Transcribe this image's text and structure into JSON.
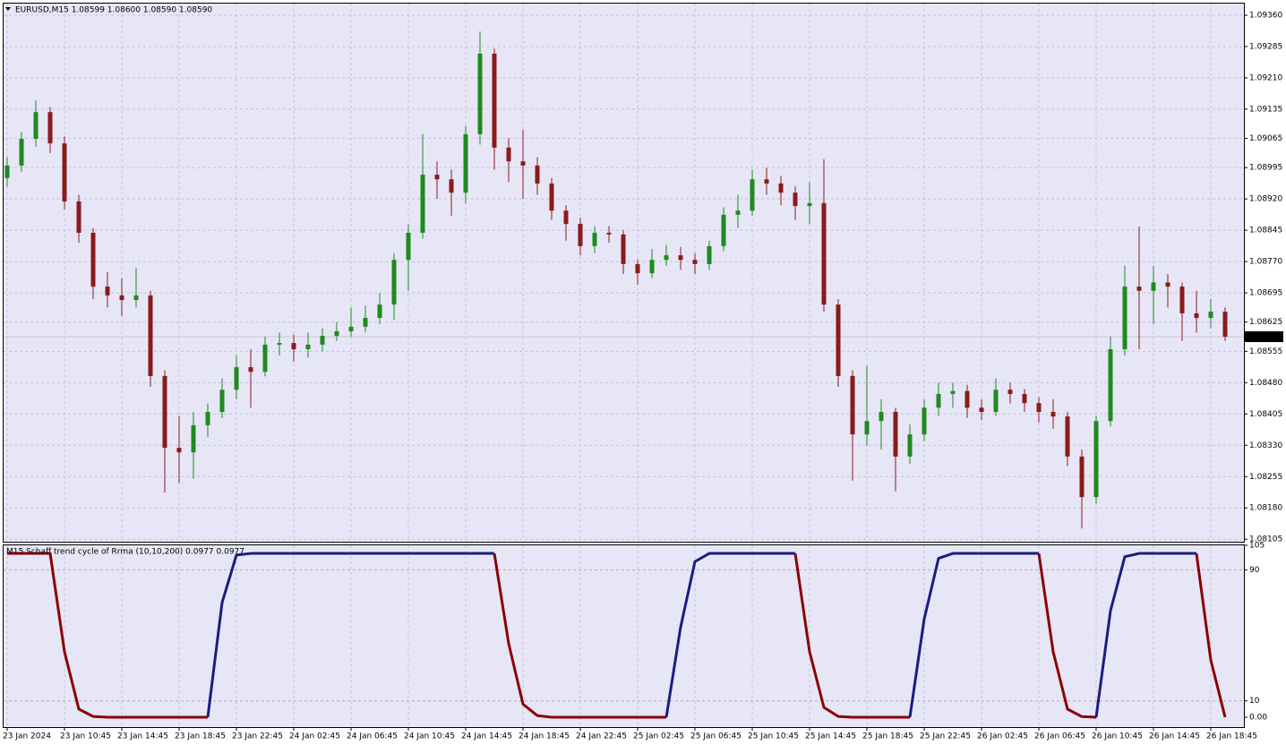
{
  "chart_data": [
    {
      "type": "candlestick",
      "title": "EURUSD,M15  1.08599 1.08600 1.08590 1.08590",
      "up_color": "#1f8a1f",
      "down_color": "#8b1a1a",
      "grid": true,
      "categories": [
        "23 Jan 2024",
        null,
        null,
        null,
        "23 Jan 10:45",
        null,
        null,
        null,
        "23 Jan 14:45",
        null,
        null,
        null,
        "23 Jan 18:45",
        null,
        null,
        null,
        "23 Jan 22:45",
        null,
        null,
        null,
        "24 Jan 02:45",
        null,
        null,
        null,
        "24 Jan 06:45",
        null,
        null,
        null,
        "24 Jan 10:45",
        null,
        null,
        null,
        "24 Jan 14:45",
        null,
        null,
        null,
        "24 Jan 18:45",
        null,
        null,
        null,
        "24 Jan 22:45",
        null,
        null,
        null,
        "25 Jan 02:45",
        null,
        null,
        null,
        "25 Jan 06:45",
        null,
        null,
        null,
        "25 Jan 10:45",
        null,
        null,
        null,
        "25 Jan 14:45",
        null,
        null,
        null,
        "25 Jan 18:45",
        null,
        null,
        null,
        "25 Jan 22:45",
        null,
        null,
        null,
        "26 Jan 02:45",
        null,
        null,
        null,
        "26 Jan 06:45",
        null,
        null,
        null,
        "26 Jan 10:45",
        null,
        null,
        null,
        "26 Jan 14:45",
        null,
        null,
        null,
        "26 Jan 18:45",
        null
      ],
      "ohlc": [
        [
          1.0897,
          1.0902,
          1.0895,
          1.09
        ],
        [
          1.09,
          1.0908,
          1.08985,
          1.09064
        ],
        [
          1.09064,
          1.09156,
          1.09045,
          1.09128
        ],
        [
          1.09128,
          1.0914,
          1.0903,
          1.09053
        ],
        [
          1.09053,
          1.0907,
          1.08895,
          1.08914
        ],
        [
          1.08914,
          1.0893,
          1.08815,
          1.08839
        ],
        [
          1.08839,
          1.0885,
          1.0868,
          1.0871
        ],
        [
          1.0871,
          1.08745,
          1.0866,
          1.08689
        ],
        [
          1.08689,
          1.0873,
          1.0864,
          1.08678
        ],
        [
          1.08678,
          1.08755,
          1.0866,
          1.08689
        ],
        [
          1.08689,
          1.087,
          1.0847,
          1.08496
        ],
        [
          1.08496,
          1.0851,
          1.08217,
          1.08324
        ],
        [
          1.08324,
          1.084,
          1.0824,
          1.08313
        ],
        [
          1.08313,
          1.0841,
          1.0825,
          1.08378
        ],
        [
          1.08378,
          1.0843,
          1.0835,
          1.0841
        ],
        [
          1.0841,
          1.0849,
          1.08395,
          1.08463
        ],
        [
          1.08463,
          1.08545,
          1.0844,
          1.08517
        ],
        [
          1.08517,
          1.0856,
          1.0842,
          1.08506
        ],
        [
          1.08506,
          1.0859,
          1.08495,
          1.08571
        ],
        [
          1.08571,
          1.086,
          1.08545,
          1.08575
        ],
        [
          1.08575,
          1.08595,
          1.0853,
          1.0856
        ],
        [
          1.0856,
          1.086,
          1.0854,
          1.08571
        ],
        [
          1.08571,
          1.0861,
          1.08555,
          1.08592
        ],
        [
          1.08592,
          1.08625,
          1.0858,
          1.08603
        ],
        [
          1.08603,
          1.0866,
          1.0859,
          1.08614
        ],
        [
          1.08614,
          1.08665,
          1.086,
          1.08635
        ],
        [
          1.08635,
          1.08695,
          1.0862,
          1.08667
        ],
        [
          1.08667,
          1.0879,
          1.0863,
          1.08774
        ],
        [
          1.08774,
          1.0886,
          1.087,
          1.08839
        ],
        [
          1.08839,
          1.09075,
          1.08825,
          1.08978
        ],
        [
          1.08978,
          1.0901,
          1.0892,
          1.08967
        ],
        [
          1.08967,
          1.0899,
          1.0888,
          1.08935
        ],
        [
          1.08935,
          1.09095,
          1.0891,
          1.09075
        ],
        [
          1.09075,
          1.09321,
          1.0905,
          1.09268
        ],
        [
          1.09268,
          1.0928,
          1.0899,
          1.09043
        ],
        [
          1.09043,
          1.09065,
          1.0896,
          1.0901
        ],
        [
          1.0901,
          1.09085,
          1.0892,
          1.09
        ],
        [
          1.09,
          1.0902,
          1.0893,
          1.08957
        ],
        [
          1.08957,
          1.0897,
          1.0887,
          1.08892
        ],
        [
          1.08892,
          1.08905,
          1.0882,
          1.0886
        ],
        [
          1.0886,
          1.08875,
          1.08785,
          1.08807
        ],
        [
          1.08807,
          1.08855,
          1.0879,
          1.08839
        ],
        [
          1.08839,
          1.08855,
          1.08815,
          1.08835
        ],
        [
          1.08835,
          1.08845,
          1.0874,
          1.08764
        ],
        [
          1.08764,
          1.08775,
          1.08715,
          1.08742
        ],
        [
          1.08742,
          1.088,
          1.0873,
          1.08774
        ],
        [
          1.08774,
          1.0881,
          1.0876,
          1.08785
        ],
        [
          1.08785,
          1.08805,
          1.0875,
          1.08774
        ],
        [
          1.08774,
          1.0879,
          1.0874,
          1.08764
        ],
        [
          1.08764,
          1.0882,
          1.0875,
          1.08807
        ],
        [
          1.08807,
          1.089,
          1.08795,
          1.08882
        ],
        [
          1.08882,
          1.0893,
          1.0885,
          1.08892
        ],
        [
          1.08892,
          1.0899,
          1.0888,
          1.08967
        ],
        [
          1.08967,
          1.08995,
          1.0893,
          1.08957
        ],
        [
          1.08957,
          1.08975,
          1.08905,
          1.08935
        ],
        [
          1.08935,
          1.0895,
          1.0887,
          1.08903
        ],
        [
          1.08903,
          1.0896,
          1.0886,
          1.0891
        ],
        [
          1.0891,
          1.09015,
          1.0865,
          1.08667
        ],
        [
          1.08667,
          1.0868,
          1.0847,
          1.08496
        ],
        [
          1.08496,
          1.0851,
          1.08245,
          1.08356
        ],
        [
          1.08356,
          1.0852,
          1.0833,
          1.08388
        ],
        [
          1.08388,
          1.0844,
          1.0832,
          1.0841
        ],
        [
          1.0841,
          1.0842,
          1.0822,
          1.08303
        ],
        [
          1.08303,
          1.0838,
          1.08285,
          1.08356
        ],
        [
          1.08356,
          1.0844,
          1.0834,
          1.0842
        ],
        [
          1.0842,
          1.0848,
          1.084,
          1.08453
        ],
        [
          1.08453,
          1.0848,
          1.0842,
          1.0846
        ],
        [
          1.0846,
          1.08475,
          1.08395,
          1.0842
        ],
        [
          1.0842,
          1.0844,
          1.0839,
          1.0841
        ],
        [
          1.0841,
          1.0849,
          1.084,
          1.08463
        ],
        [
          1.08463,
          1.0848,
          1.0843,
          1.08453
        ],
        [
          1.08453,
          1.08465,
          1.0841,
          1.08431
        ],
        [
          1.08431,
          1.08445,
          1.08385,
          1.0841
        ],
        [
          1.0841,
          1.0844,
          1.0837,
          1.08399
        ],
        [
          1.08399,
          1.0841,
          1.0828,
          1.08303
        ],
        [
          1.08303,
          1.0832,
          1.08131,
          1.08206
        ],
        [
          1.08206,
          1.084,
          1.0819,
          1.08388
        ],
        [
          1.08388,
          1.0859,
          1.08375,
          1.0856
        ],
        [
          1.0856,
          1.0876,
          1.08545,
          1.0871
        ],
        [
          1.0871,
          1.08854,
          1.0856,
          1.087
        ],
        [
          1.087,
          1.0876,
          1.0862,
          1.0872
        ],
        [
          1.0872,
          1.0874,
          1.0866,
          1.0871
        ],
        [
          1.0871,
          1.0872,
          1.0858,
          1.08646
        ],
        [
          1.08646,
          1.087,
          1.086,
          1.08635
        ],
        [
          1.08635,
          1.0868,
          1.0861,
          1.0865
        ],
        [
          1.0865,
          1.0866,
          1.0858,
          1.0859
        ]
      ],
      "ylim": [
        1.08099,
        1.0939
      ],
      "yticks": [
        {
          "value": 1.0936,
          "label": "1.09360"
        },
        {
          "value": 1.09285,
          "label": "1.09285"
        },
        {
          "value": 1.0921,
          "label": "1.09210"
        },
        {
          "value": 1.09135,
          "label": "1.09135"
        },
        {
          "value": 1.09065,
          "label": "1.09065"
        },
        {
          "value": 1.08995,
          "label": "1.08995"
        },
        {
          "value": 1.0892,
          "label": "1.08920"
        },
        {
          "value": 1.08845,
          "label": "1.08845"
        },
        {
          "value": 1.0877,
          "label": "1.08770"
        },
        {
          "value": 1.08695,
          "label": "1.08695"
        },
        {
          "value": 1.08625,
          "label": "1.08625"
        },
        {
          "value": 1.08555,
          "label": "1.08555"
        },
        {
          "value": 1.0848,
          "label": "1.08480"
        },
        {
          "value": 1.08405,
          "label": "1.08405"
        },
        {
          "value": 1.0833,
          "label": "1.08330"
        },
        {
          "value": 1.08255,
          "label": "1.08255"
        },
        {
          "value": 1.0818,
          "label": "1.08180"
        },
        {
          "value": 1.08105,
          "label": "1.08105"
        }
      ],
      "last_price": {
        "value": 1.0859,
        "label": "1.08590"
      }
    },
    {
      "type": "line",
      "title": "M15 Schaff trend cycle of Rrma (10,10,200) 0.0977 0.0977",
      "ylim": [
        -6,
        105.5
      ],
      "yticks": [
        105,
        90,
        10,
        {
          "value": 0,
          "label": "0.00"
        }
      ],
      "levels": [
        90,
        10
      ],
      "level_color": "#d2a0a0",
      "series": [
        {
          "color": "#8b0000",
          "values": [
            100,
            100,
            100,
            100,
            40,
            5,
            0.5,
            0,
            0,
            0,
            0,
            0,
            0,
            0,
            0,
            null,
            null,
            null,
            null,
            null,
            null,
            null,
            null,
            null,
            null,
            null,
            null,
            null,
            null,
            null,
            null,
            null,
            null,
            null,
            100,
            45,
            8,
            1,
            0,
            0,
            0,
            0,
            0,
            0,
            0,
            0,
            0,
            null,
            null,
            null,
            null,
            null,
            null,
            null,
            null,
            100,
            40,
            6,
            0.5,
            0,
            0,
            0,
            0,
            0,
            null,
            null,
            null,
            null,
            null,
            null,
            null,
            null,
            100,
            40,
            5,
            0.4,
            0,
            null,
            null,
            null,
            null,
            null,
            null,
            100,
            35,
            0.0977
          ]
        },
        {
          "color": "#1c1c80",
          "values": [
            null,
            null,
            null,
            null,
            null,
            null,
            null,
            null,
            null,
            null,
            null,
            null,
            null,
            null,
            0,
            70,
            99,
            100,
            100,
            100,
            100,
            100,
            100,
            100,
            100,
            100,
            100,
            100,
            100,
            100,
            100,
            100,
            100,
            100,
            100,
            null,
            null,
            null,
            null,
            null,
            null,
            null,
            null,
            null,
            null,
            null,
            0,
            55,
            95,
            100,
            100,
            100,
            100,
            100,
            100,
            100,
            null,
            null,
            null,
            null,
            null,
            null,
            null,
            0,
            60,
            97,
            100,
            100,
            100,
            100,
            100,
            100,
            100,
            null,
            null,
            null,
            0,
            65,
            98,
            100,
            100,
            100,
            100,
            100,
            null,
            null
          ]
        }
      ]
    }
  ]
}
